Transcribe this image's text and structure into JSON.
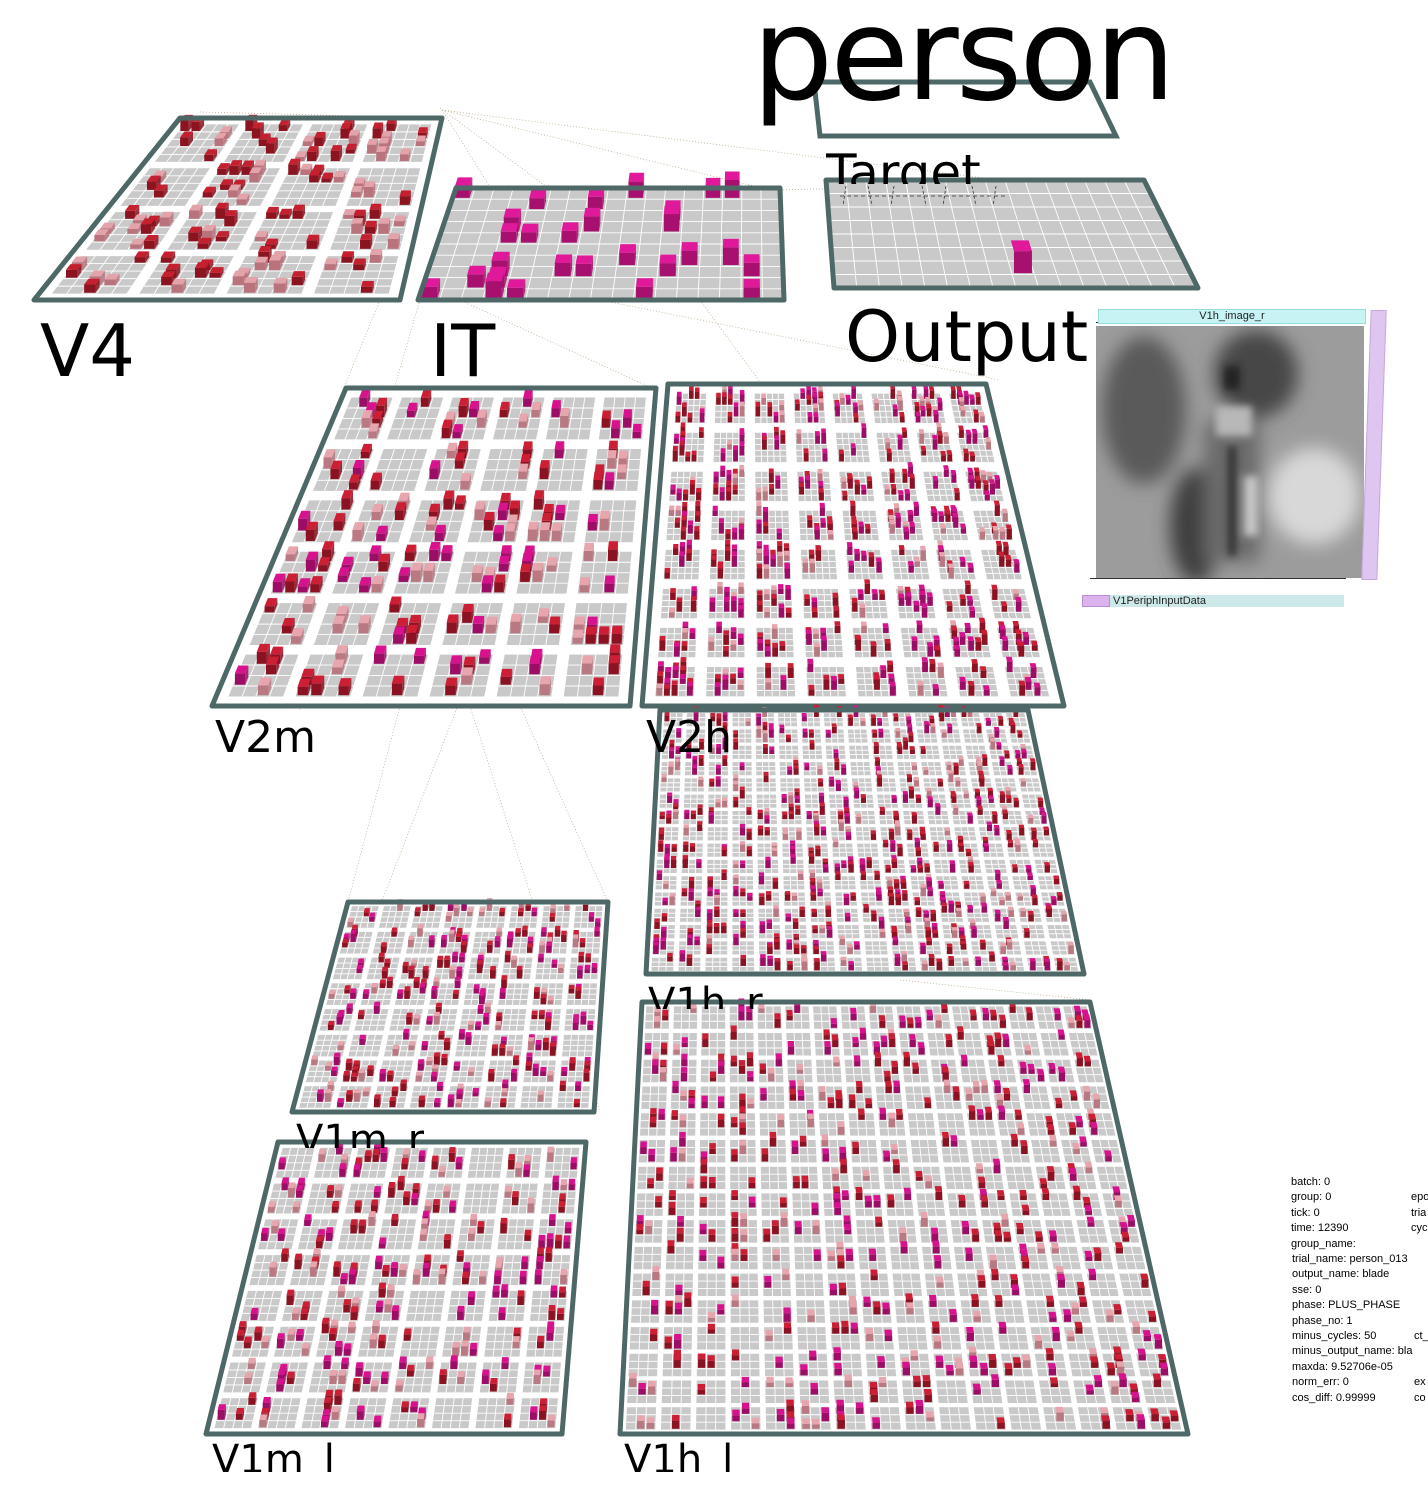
{
  "target_word": "person",
  "layers": {
    "V4": "V4",
    "IT": "IT",
    "Output": "Output",
    "Target": "Target",
    "V2m": "V2m",
    "V2h": "V2h",
    "V1h_r": "V1h_r",
    "V1m_r": "V1m_r",
    "V1m_l": "V1m_l",
    "V1h_l": "V1h_l"
  },
  "image_panel": {
    "title": "V1h_image_r",
    "input_data_label": "V1PeriphInputData"
  },
  "stats": {
    "left": [
      "batch: 0",
      "group: 0",
      "tick: 0",
      "time: 12390",
      "group_name:",
      "trial_name: person_013",
      "output_name: blade",
      "sse: 0",
      "phase: PLUS_PHASE",
      "phase_no: 1",
      "minus_cycles: 50",
      "minus_output_name: bla",
      "maxda: 9.52706e-05",
      "norm_err: 0",
      "cos_diff: 0.99999"
    ],
    "right": [
      {
        "row": 1,
        "text": "epo"
      },
      {
        "row": 2,
        "text": "tria"
      },
      {
        "row": 3,
        "text": "cyc"
      },
      {
        "row": 10,
        "text": "ct_"
      },
      {
        "row": 13,
        "text": "ex"
      },
      {
        "row": 14,
        "text": "co"
      }
    ]
  },
  "colors": {
    "layer_border": "#4e6867",
    "grid_fill": "#c9c9c9",
    "unit_magenta": "#e0189a",
    "unit_red": "#cc1e35",
    "unit_pale": "#e8a8b0"
  }
}
